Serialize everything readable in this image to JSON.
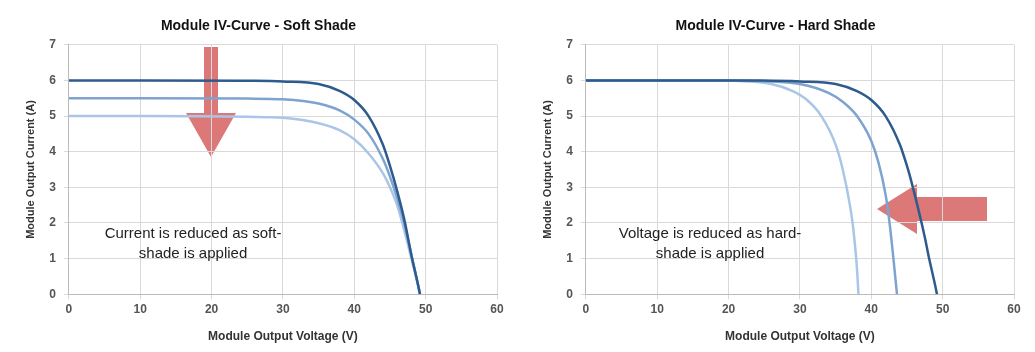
{
  "chart_data": [
    {
      "type": "line",
      "title": "Module IV-Curve - Soft Shade",
      "xlabel": "Module Output Voltage (V)",
      "ylabel": "Module Output Current (A)",
      "xlim": [
        0,
        60
      ],
      "xticks": [
        0,
        10,
        20,
        30,
        40,
        50,
        60
      ],
      "ylim": [
        0,
        7
      ],
      "yticks": [
        0,
        1,
        2,
        3,
        4,
        5,
        6,
        7
      ],
      "grid": true,
      "legend": false,
      "marker": "none",
      "line_style": "solid",
      "annotations": [
        "Current is reduced as soft-shade is applied"
      ],
      "series": [
        {
          "color": "#2e5b8e",
          "x": [
            0,
            10,
            25,
            30,
            35,
            38,
            40,
            42,
            44,
            45,
            46,
            47,
            48,
            49,
            49.2
          ],
          "values": [
            6,
            6,
            5.99,
            5.97,
            5.9,
            5.7,
            5.45,
            5,
            4.2,
            3.6,
            2.9,
            2.1,
            1.1,
            0.2,
            0
          ]
        },
        {
          "color": "#7ea3cf",
          "x": [
            0,
            10,
            25,
            30,
            35,
            38,
            40,
            42,
            44,
            45,
            46,
            47,
            48,
            49,
            49.2
          ],
          "values": [
            5.5,
            5.5,
            5.49,
            5.47,
            5.35,
            5.15,
            4.9,
            4.5,
            3.8,
            3.3,
            2.7,
            2,
            1.1,
            0.2,
            0
          ]
        },
        {
          "color": "#aac5e5",
          "x": [
            0,
            10,
            25,
            30,
            35,
            38,
            40,
            42,
            44,
            45,
            46,
            47,
            48,
            49,
            49.2
          ],
          "values": [
            5,
            5,
            4.98,
            4.95,
            4.8,
            4.6,
            4.35,
            3.95,
            3.4,
            3,
            2.5,
            1.8,
            1,
            0.2,
            0
          ]
        }
      ]
    },
    {
      "type": "line",
      "title": "Module IV-Curve - Hard Shade",
      "xlabel": "Module Output Voltage (V)",
      "ylabel": "Module Output Current (A)",
      "xlim": [
        0,
        60
      ],
      "xticks": [
        0,
        10,
        20,
        30,
        40,
        50,
        60
      ],
      "ylim": [
        0,
        7
      ],
      "yticks": [
        0,
        1,
        2,
        3,
        4,
        5,
        6,
        7
      ],
      "grid": true,
      "legend": false,
      "marker": "none",
      "line_style": "solid",
      "annotations": [
        "Voltage is reduced as hard-shade is applied"
      ],
      "series": [
        {
          "color": "#2e5b8e",
          "x": [
            0,
            10,
            20,
            30,
            35,
            38,
            40,
            42,
            44,
            45,
            45.5,
            47.5,
            48,
            49,
            49.2
          ],
          "values": [
            6,
            6,
            6,
            5.97,
            5.9,
            5.7,
            5.45,
            5,
            4.2,
            3.6,
            3.25,
            1.6,
            1.1,
            0.2,
            0
          ]
        },
        {
          "color": "#7ea3cf",
          "x": [
            0,
            10,
            20,
            25,
            30,
            34,
            36,
            38,
            40,
            41,
            42,
            42.5,
            43,
            43.4,
            43.6
          ],
          "values": [
            6,
            6,
            6,
            5.98,
            5.9,
            5.65,
            5.4,
            5,
            4.3,
            3.7,
            2.8,
            2.1,
            1.2,
            0.4,
            0
          ]
        },
        {
          "color": "#aac5e5",
          "x": [
            0,
            10,
            20,
            22,
            26,
            29,
            31,
            33,
            35,
            36,
            37,
            37.5,
            38,
            38.2
          ],
          "values": [
            6,
            6,
            6,
            5.98,
            5.9,
            5.7,
            5.45,
            5,
            4.2,
            3.5,
            2.5,
            1.8,
            0.7,
            0
          ]
        }
      ]
    }
  ]
}
